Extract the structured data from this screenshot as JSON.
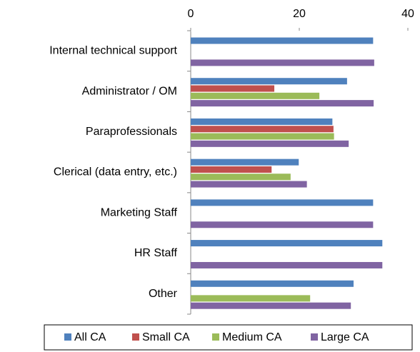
{
  "chart_data": {
    "type": "bar",
    "orientation": "horizontal",
    "categories": [
      "Internal technical support",
      "Administrator / OM",
      "Paraprofessionals",
      "Clerical (data entry, etc.)",
      "Marketing Staff",
      "HR Staff",
      "Other"
    ],
    "series": [
      {
        "name": "All CA",
        "color": "#4f81bd",
        "values": [
          33.6,
          28.8,
          26.1,
          19.9,
          33.6,
          35.3,
          30.0
        ]
      },
      {
        "name": "Small CA",
        "color": "#c0504d",
        "values": [
          null,
          15.4,
          26.3,
          14.9,
          null,
          null,
          null
        ]
      },
      {
        "name": "Medium CA",
        "color": "#9bbb59",
        "values": [
          null,
          23.7,
          26.4,
          18.4,
          null,
          null,
          22.0
        ]
      },
      {
        "name": "Large CA",
        "color": "#8064a2",
        "values": [
          33.8,
          33.7,
          29.1,
          21.4,
          33.6,
          35.3,
          29.5
        ]
      }
    ],
    "xlim": [
      0,
      40
    ],
    "xticks": [
      0,
      20,
      40
    ],
    "legend": "bottom"
  }
}
